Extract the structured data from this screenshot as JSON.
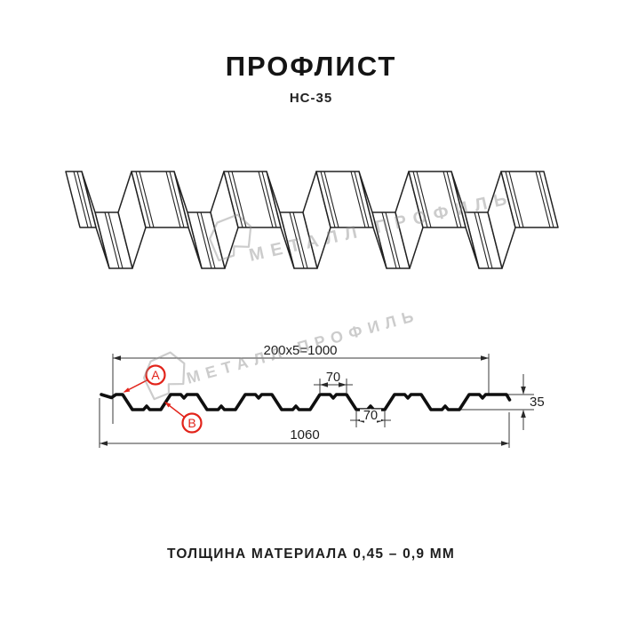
{
  "header": {
    "title": "ПРОФЛИСТ",
    "subtitle": "НС-35"
  },
  "watermark": {
    "text": "МЕТАЛЛ ПРОФИЛЬ"
  },
  "cross_section": {
    "dim_top_total": "200x5=1000",
    "dim_crest_width": "70",
    "dim_valley_width": "70",
    "dim_overall_width": "1060",
    "dim_height": "35",
    "callout_a": "А",
    "callout_b": "В"
  },
  "footer": {
    "text": "ТОЛЩИНА МАТЕРИАЛА 0,45 – 0,9 ММ"
  },
  "colors": {
    "accent_red": "#e2231a",
    "watermark_gray": "#8f8f8f",
    "line": "#1a1a1a"
  }
}
